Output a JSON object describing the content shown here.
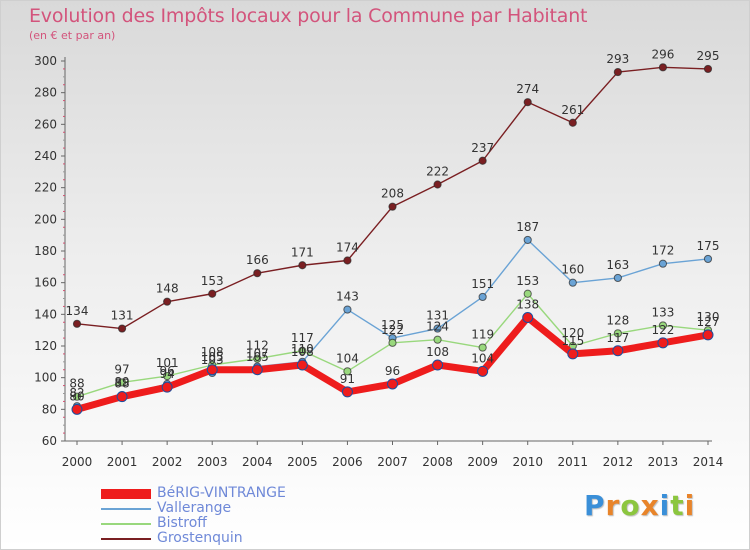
{
  "title": "Evolution des Impôts locaux pour la Commune par Habitant",
  "subtitle": "(en € et par an)",
  "logo": {
    "text": "Proxiti",
    "letters": [
      {
        "ch": "P",
        "color": "#3a8fd8"
      },
      {
        "ch": "r",
        "color": "#e8842a"
      },
      {
        "ch": "o",
        "color": "#8cc63f"
      },
      {
        "ch": "x",
        "color": "#e8842a"
      },
      {
        "ch": "i",
        "color": "#3a8fd8"
      },
      {
        "ch": "t",
        "color": "#8cc63f"
      },
      {
        "ch": "i",
        "color": "#e8842a"
      }
    ]
  },
  "chart_data": {
    "type": "line",
    "title": "Evolution des Impôts locaux pour la Commune par Habitant",
    "subtitle": "(en € et par an)",
    "xlabel": "",
    "ylabel": "",
    "x": [
      "2000",
      "2001",
      "2002",
      "2003",
      "2004",
      "2005",
      "2006",
      "2007",
      "2008",
      "2009",
      "2010",
      "2011",
      "2012",
      "2013",
      "2014"
    ],
    "ylim": [
      60,
      300
    ],
    "yticks": [
      60,
      80,
      100,
      120,
      140,
      160,
      180,
      200,
      220,
      240,
      260,
      280,
      300
    ],
    "grid": false,
    "legend_position": "bottom-left",
    "series": [
      {
        "name": "Grostenquin",
        "color": "#7a1f22",
        "width": 1.4,
        "values": [
          134,
          131,
          148,
          153,
          166,
          171,
          174,
          208,
          222,
          237,
          274,
          261,
          293,
          296,
          295
        ],
        "labels": [
          "134",
          "131",
          "148",
          "153",
          "166",
          "171",
          "174",
          "208",
          "222",
          "237",
          "274",
          "261",
          "293",
          "296",
          "295"
        ]
      },
      {
        "name": "Vallerange",
        "color": "#6aa3d5",
        "width": 1.4,
        "values": [
          82,
          89,
          96,
          103,
          107,
          110,
          143,
          125,
          131,
          151,
          187,
          160,
          163,
          172,
          175
        ],
        "labels": [
          "82",
          "89",
          "96",
          "103",
          "107",
          "110",
          "143",
          "125",
          "131",
          "151",
          "187",
          "160",
          "163",
          "172",
          "175"
        ]
      },
      {
        "name": "Bistroff",
        "color": "#99d87d",
        "width": 1.4,
        "values": [
          88,
          97,
          101,
          108,
          112,
          117,
          104,
          122,
          124,
          119,
          153,
          120,
          128,
          133,
          130
        ],
        "labels": [
          "88",
          "97",
          "101",
          "108",
          "112",
          "117",
          "104",
          "122",
          "124",
          "119",
          "153",
          "120",
          "128",
          "133",
          "130"
        ]
      },
      {
        "name": "BéRIG-VINTRANGE",
        "color": "#ee1c1c",
        "width": 7,
        "values": [
          80,
          88,
          94,
          105,
          105,
          108,
          91,
          96,
          108,
          104,
          138,
          115,
          117,
          122,
          127
        ],
        "labels": [
          "80",
          "88",
          "94",
          "105",
          "105",
          "108",
          "91",
          "96",
          "108",
          "104",
          "138",
          "115",
          "117",
          "122",
          "127"
        ]
      }
    ]
  },
  "legend": [
    {
      "label": "BéRIG-VINTRANGE",
      "color": "#ee1c1c",
      "height": 10
    },
    {
      "label": "Vallerange",
      "color": "#6aa3d5",
      "height": 2
    },
    {
      "label": "Bistroff",
      "color": "#99d87d",
      "height": 2
    },
    {
      "label": "Grostenquin",
      "color": "#7a1f22",
      "height": 2
    }
  ]
}
